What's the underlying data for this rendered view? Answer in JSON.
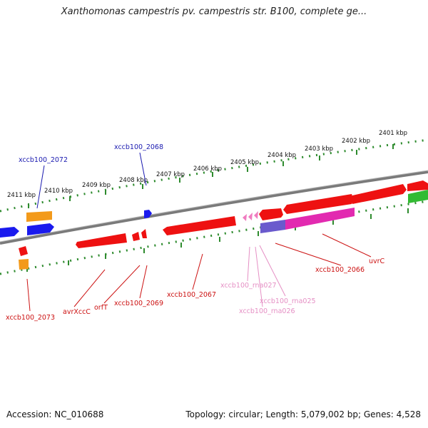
{
  "title": "Xanthomonas campestris pv. campestris str. B100, complete ge...",
  "footer": {
    "accession": "Accession: NC_010688",
    "meta": "Topology: circular; Length: 5,079,002 bp; Genes: 4,528"
  },
  "colors": {
    "backbone": "#808080",
    "tick_dot": "#2e8b2e",
    "gene_red": "#ee1111",
    "gene_blue": "#1a1aee",
    "gene_orange": "#f39a1a",
    "gene_green": "#33bb33",
    "gene_pink": "#f07bc0",
    "gene_magenta": "#e22ab0",
    "gene_purple": "#6a5acd",
    "label_blue": "#1a1ab0",
    "label_red": "#cc1111",
    "label_pink": "#e58fc4"
  },
  "kbp_labels": [
    "2411 kbp",
    "2410 kbp",
    "2409 kbp",
    "2408 kbp",
    "2407 kbp",
    "2406 kbp",
    "2405 kbp",
    "2404 kbp",
    "2403 kbp",
    "2402 kbp",
    "2401 kbp"
  ],
  "gene_labels": {
    "xccb100_2072": "xccb100_2072",
    "xccb100_2068": "xccb100_2068",
    "xccb100_2073": "xccb100_2073",
    "avrXccC": "avrXccC",
    "orfT": "orfT",
    "xccb100_2069": "xccb100_2069",
    "xccb100_2067": "xccb100_2067",
    "xccb100_rna027": "xccb100_rna027",
    "xccb100_rna025": "xccb100_rna025",
    "xccb100_rna026": "xccb100_rna026",
    "xccb100_2066": "xccb100_2066",
    "uvrC": "uvrC"
  }
}
